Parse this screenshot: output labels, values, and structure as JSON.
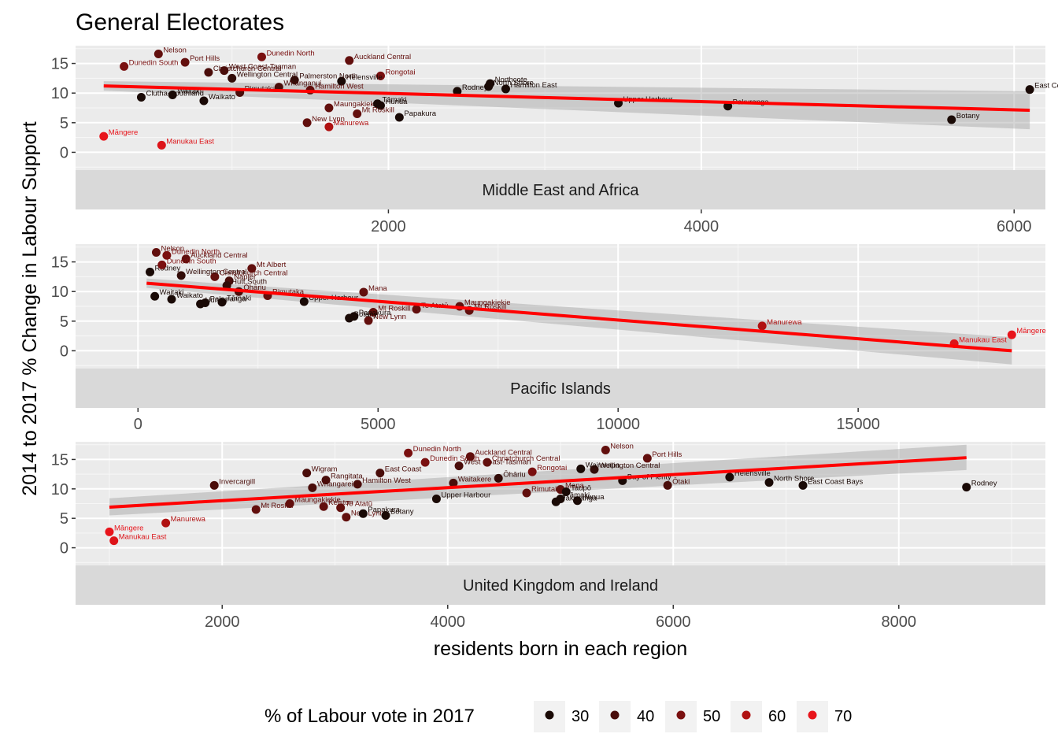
{
  "chart_data": {
    "type": "scatter",
    "title": "General Electorates",
    "ylabel": "2014 to 2017 % Change in Labour Support",
    "xlabel": "residents born in each region",
    "legend": {
      "title": "% of Labour vote in 2017",
      "position": "bottom",
      "values": [
        30,
        40,
        50,
        60,
        70
      ],
      "colors": [
        "#1a0a06",
        "#4a0d0a",
        "#7a1010",
        "#b01212",
        "#e8141b"
      ]
    },
    "panels": [
      {
        "strip": "Middle East and Africa",
        "xlim": [
          0,
          6200
        ],
        "ylim": [
          -3,
          18
        ],
        "xticks": [
          2000,
          4000,
          6000
        ],
        "yticks": [
          0,
          5,
          10,
          15
        ],
        "fit": {
          "x": [
            180,
            6100
          ],
          "y": [
            11.2,
            7.1
          ],
          "band_low": [
            10.4,
            3.9
          ],
          "band_high": [
            12.0,
            10.3
          ]
        },
        "points": [
          {
            "x": 180,
            "y": 2.7,
            "vote": 70,
            "label": "Māngere"
          },
          {
            "x": 550,
            "y": 1.2,
            "vote": 68,
            "label": "Manukau East"
          },
          {
            "x": 310,
            "y": 14.5,
            "vote": 50,
            "label": "Dunedin South"
          },
          {
            "x": 530,
            "y": 16.6,
            "vote": 45,
            "label": "Nelson"
          },
          {
            "x": 700,
            "y": 15.2,
            "vote": 45,
            "label": "Port Hills"
          },
          {
            "x": 1190,
            "y": 16.1,
            "vote": 50,
            "label": "Dunedin North"
          },
          {
            "x": 1750,
            "y": 15.5,
            "vote": 45,
            "label": "Auckland Central"
          },
          {
            "x": 1950,
            "y": 12.9,
            "vote": 50,
            "label": "Rongotai"
          },
          {
            "x": 850,
            "y": 13.5,
            "vote": 40,
            "label": "Christchurch Central"
          },
          {
            "x": 1700,
            "y": 12.0,
            "vote": 30,
            "label": "Helensville"
          },
          {
            "x": 1500,
            "y": 10.5,
            "vote": 45,
            "label": "Hamilton West"
          },
          {
            "x": 1620,
            "y": 7.5,
            "vote": 45,
            "label": "Maungakiekie"
          },
          {
            "x": 1930,
            "y": 8.2,
            "vote": 30,
            "label": "Tāmaki"
          },
          {
            "x": 1950,
            "y": 7.9,
            "vote": 30,
            "label": "Hunua"
          },
          {
            "x": 1800,
            "y": 6.5,
            "vote": 45,
            "label": "Mt Roskill"
          },
          {
            "x": 1480,
            "y": 5.0,
            "vote": 45,
            "label": "New Lynn"
          },
          {
            "x": 1620,
            "y": 4.3,
            "vote": 60,
            "label": "Manurewa"
          },
          {
            "x": 2070,
            "y": 5.9,
            "vote": 30,
            "label": "Papakura"
          },
          {
            "x": 2650,
            "y": 11.6,
            "vote": 30,
            "label": "Northcote"
          },
          {
            "x": 2640,
            "y": 11.1,
            "vote": 30,
            "label": "North Shore"
          },
          {
            "x": 2440,
            "y": 10.3,
            "vote": 30,
            "label": "Rodney"
          },
          {
            "x": 2750,
            "y": 10.7,
            "vote": 30,
            "label": "Hamilton East"
          },
          {
            "x": 3470,
            "y": 8.3,
            "vote": 30,
            "label": "Upper Harbour"
          },
          {
            "x": 4170,
            "y": 7.8,
            "vote": 30,
            "label": "Pakuranga"
          },
          {
            "x": 5600,
            "y": 5.5,
            "vote": 30,
            "label": "Botany"
          },
          {
            "x": 6100,
            "y": 10.6,
            "vote": 30,
            "label": "East Coast Bays"
          },
          {
            "x": 620,
            "y": 9.7,
            "vote": 30,
            "label": "Waitaki"
          },
          {
            "x": 820,
            "y": 8.7,
            "vote": 30,
            "label": "Waikato"
          },
          {
            "x": 420,
            "y": 9.3,
            "vote": 30,
            "label": "Clutha-Southland"
          },
          {
            "x": 1000,
            "y": 12.5,
            "vote": 35,
            "label": "Wellington Central"
          },
          {
            "x": 950,
            "y": 13.8,
            "vote": 40,
            "label": "West Coast-Tasman"
          },
          {
            "x": 1400,
            "y": 12.2,
            "vote": 35,
            "label": "Palmerston North"
          },
          {
            "x": 1300,
            "y": 11.0,
            "vote": 40,
            "label": "Whanganui"
          },
          {
            "x": 1050,
            "y": 10.1,
            "vote": 40,
            "label": "Rimutaka"
          }
        ]
      },
      {
        "strip": "Pacific Islands",
        "xlim": [
          -1300,
          18900
        ],
        "ylim": [
          -3,
          18
        ],
        "xticks": [
          0,
          5000,
          10000,
          15000
        ],
        "yticks": [
          0,
          5,
          10,
          15
        ],
        "fit": {
          "x": [
            180,
            18200
          ],
          "y": [
            11.4,
            0.0
          ],
          "band_low": [
            10.6,
            -2.3
          ],
          "band_high": [
            12.2,
            2.3
          ]
        },
        "points": [
          {
            "x": 18200,
            "y": 2.7,
            "vote": 70,
            "label": "Māngere"
          },
          {
            "x": 17000,
            "y": 1.2,
            "vote": 68,
            "label": "Manukau East"
          },
          {
            "x": 13000,
            "y": 4.2,
            "vote": 60,
            "label": "Manurewa"
          },
          {
            "x": 4700,
            "y": 9.9,
            "vote": 45,
            "label": "Mana"
          },
          {
            "x": 6700,
            "y": 7.5,
            "vote": 45,
            "label": "Maungakiekie"
          },
          {
            "x": 6900,
            "y": 6.8,
            "vote": 45,
            "label": "Mt Roskill"
          },
          {
            "x": 5800,
            "y": 7.0,
            "vote": 45,
            "label": "Te Atatū"
          },
          {
            "x": 4900,
            "y": 6.5,
            "vote": 45,
            "label": "Mt Roskill"
          },
          {
            "x": 4800,
            "y": 5.1,
            "vote": 45,
            "label": "New Lynn"
          },
          {
            "x": 4500,
            "y": 5.8,
            "vote": 30,
            "label": "Papakura"
          },
          {
            "x": 4400,
            "y": 5.5,
            "vote": 30,
            "label": "Botany"
          },
          {
            "x": 3460,
            "y": 8.3,
            "vote": 30,
            "label": "Upper Harbour"
          },
          {
            "x": 380,
            "y": 16.6,
            "vote": 45,
            "label": "Nelson"
          },
          {
            "x": 600,
            "y": 16.1,
            "vote": 50,
            "label": "Dunedin North"
          },
          {
            "x": 1000,
            "y": 15.5,
            "vote": 45,
            "label": "Auckland Central"
          },
          {
            "x": 2370,
            "y": 13.9,
            "vote": 45,
            "label": "Mt Albert"
          },
          {
            "x": 1600,
            "y": 12.5,
            "vote": 45,
            "label": "Christchurch Central"
          },
          {
            "x": 1900,
            "y": 11.8,
            "vote": 40,
            "label": "Napier"
          },
          {
            "x": 1850,
            "y": 11.0,
            "vote": 35,
            "label": "Hutt South"
          },
          {
            "x": 2100,
            "y": 10.0,
            "vote": 40,
            "label": "Ōhāriu"
          },
          {
            "x": 2700,
            "y": 9.3,
            "vote": 45,
            "label": "Rimutaka"
          },
          {
            "x": 1750,
            "y": 8.2,
            "vote": 30,
            "label": "Tāmaki"
          },
          {
            "x": 1300,
            "y": 7.9,
            "vote": 30,
            "label": "Hunua"
          },
          {
            "x": 1400,
            "y": 8.1,
            "vote": 30,
            "label": "Pakuranga"
          },
          {
            "x": 700,
            "y": 8.7,
            "vote": 30,
            "label": "Waikato"
          },
          {
            "x": 350,
            "y": 9.2,
            "vote": 30,
            "label": "Waitaki"
          },
          {
            "x": 250,
            "y": 13.3,
            "vote": 30,
            "label": "Rodney"
          },
          {
            "x": 500,
            "y": 14.5,
            "vote": 50,
            "label": "Dunedin South"
          },
          {
            "x": 900,
            "y": 12.7,
            "vote": 35,
            "label": "Wellington Central"
          }
        ]
      },
      {
        "strip": "United Kingdom and Ireland",
        "xlim": [
          700,
          9300
        ],
        "ylim": [
          -3,
          18
        ],
        "xticks": [
          2000,
          4000,
          6000,
          8000
        ],
        "yticks": [
          0,
          5,
          10,
          15
        ],
        "fit": {
          "x": [
            1000,
            8600
          ],
          "y": [
            6.9,
            15.3
          ],
          "band_low": [
            5.5,
            13.2
          ],
          "band_high": [
            8.4,
            17.5
          ]
        },
        "points": [
          {
            "x": 1000,
            "y": 2.7,
            "vote": 70,
            "label": "Māngere"
          },
          {
            "x": 1040,
            "y": 1.2,
            "vote": 68,
            "label": "Manukau East"
          },
          {
            "x": 1500,
            "y": 4.2,
            "vote": 60,
            "label": "Manurewa"
          },
          {
            "x": 1930,
            "y": 10.6,
            "vote": 40,
            "label": "Invercargill"
          },
          {
            "x": 2300,
            "y": 6.5,
            "vote": 45,
            "label": "Mt Roskill"
          },
          {
            "x": 2600,
            "y": 7.5,
            "vote": 45,
            "label": "Maungakiekie"
          },
          {
            "x": 2750,
            "y": 12.7,
            "vote": 40,
            "label": "Wigram"
          },
          {
            "x": 2920,
            "y": 11.5,
            "vote": 40,
            "label": "Rangitata"
          },
          {
            "x": 2800,
            "y": 10.2,
            "vote": 40,
            "label": "Whangarei"
          },
          {
            "x": 2900,
            "y": 7.0,
            "vote": 45,
            "label": "Kelston"
          },
          {
            "x": 3050,
            "y": 6.8,
            "vote": 45,
            "label": "Te Atatū"
          },
          {
            "x": 3100,
            "y": 5.2,
            "vote": 45,
            "label": "New Lynn"
          },
          {
            "x": 3250,
            "y": 5.8,
            "vote": 30,
            "label": "Papakura"
          },
          {
            "x": 3450,
            "y": 5.5,
            "vote": 30,
            "label": "Botany"
          },
          {
            "x": 3200,
            "y": 10.8,
            "vote": 40,
            "label": "Hamilton West"
          },
          {
            "x": 3400,
            "y": 12.7,
            "vote": 40,
            "label": "East Coast"
          },
          {
            "x": 3650,
            "y": 16.1,
            "vote": 50,
            "label": "Dunedin North"
          },
          {
            "x": 3800,
            "y": 14.5,
            "vote": 50,
            "label": "Dunedin South"
          },
          {
            "x": 4100,
            "y": 13.9,
            "vote": 40,
            "label": "West Coast-Tasman"
          },
          {
            "x": 4200,
            "y": 15.5,
            "vote": 45,
            "label": "Auckland Central"
          },
          {
            "x": 4350,
            "y": 14.5,
            "vote": 45,
            "label": "Christchurch Central"
          },
          {
            "x": 3900,
            "y": 8.3,
            "vote": 30,
            "label": "Upper Harbour"
          },
          {
            "x": 4050,
            "y": 11.0,
            "vote": 40,
            "label": "Waitakere"
          },
          {
            "x": 4450,
            "y": 11.8,
            "vote": 35,
            "label": "Ōhāriu"
          },
          {
            "x": 4750,
            "y": 12.9,
            "vote": 50,
            "label": "Rongotai"
          },
          {
            "x": 4700,
            "y": 9.3,
            "vote": 45,
            "label": "Rimutaka"
          },
          {
            "x": 5000,
            "y": 9.9,
            "vote": 45,
            "label": "Mana"
          },
          {
            "x": 5000,
            "y": 8.3,
            "vote": 30,
            "label": "Tāmaki"
          },
          {
            "x": 5050,
            "y": 9.5,
            "vote": 30,
            "label": "Taupō"
          },
          {
            "x": 5150,
            "y": 8.0,
            "vote": 30,
            "label": "Hunua"
          },
          {
            "x": 4960,
            "y": 7.8,
            "vote": 30,
            "label": "Pakuranga"
          },
          {
            "x": 5400,
            "y": 16.6,
            "vote": 45,
            "label": "Nelson"
          },
          {
            "x": 5300,
            "y": 13.3,
            "vote": 35,
            "label": "Wellington Central"
          },
          {
            "x": 5180,
            "y": 13.4,
            "vote": 30,
            "label": "Wairarapa"
          },
          {
            "x": 5770,
            "y": 15.2,
            "vote": 45,
            "label": "Port Hills"
          },
          {
            "x": 5550,
            "y": 11.4,
            "vote": 30,
            "label": "Bay of Plenty"
          },
          {
            "x": 5950,
            "y": 10.6,
            "vote": 40,
            "label": "Ōtaki"
          },
          {
            "x": 6500,
            "y": 12.0,
            "vote": 30,
            "label": "Helensville"
          },
          {
            "x": 6850,
            "y": 11.1,
            "vote": 30,
            "label": "North Shore"
          },
          {
            "x": 7150,
            "y": 10.6,
            "vote": 30,
            "label": "East Coast Bays"
          },
          {
            "x": 8600,
            "y": 10.3,
            "vote": 30,
            "label": "Rodney"
          }
        ]
      }
    ]
  }
}
